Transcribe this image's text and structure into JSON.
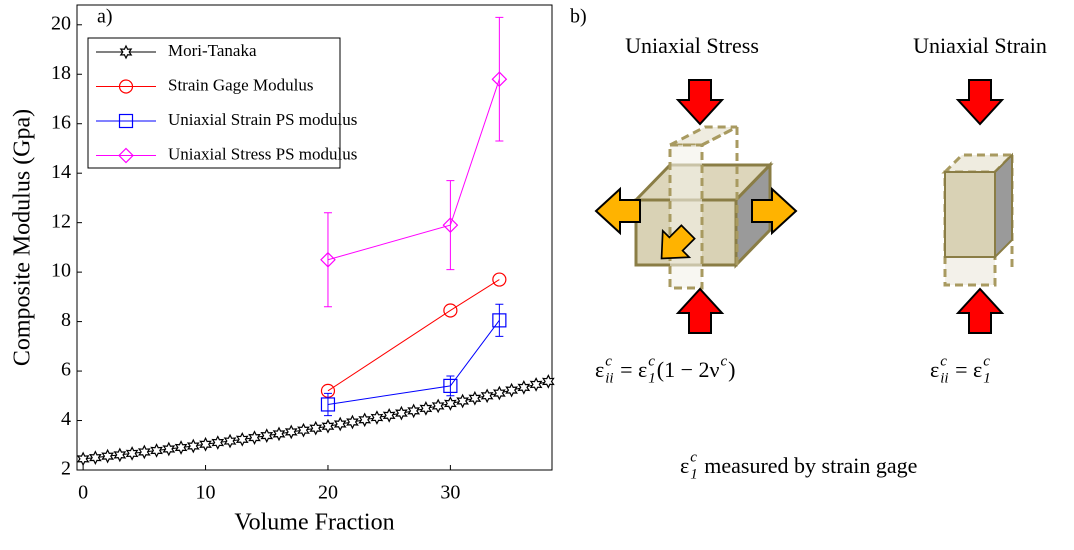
{
  "chart_data": {
    "type": "line",
    "panel_label": "a)",
    "x_label": "Volume Fraction",
    "y_label": "Composite Modulus (Gpa)",
    "xlim": [
      -0.5,
      38.3
    ],
    "ylim": [
      2,
      20.8
    ],
    "xticks": [
      0,
      10,
      20,
      30
    ],
    "yticks": [
      2,
      4,
      6,
      8,
      10,
      12,
      14,
      16,
      18,
      20
    ],
    "legend": "upper left",
    "series": [
      {
        "name": "Mori-Tanaka",
        "color": "#000000",
        "marker": "star",
        "x": [
          0,
          1,
          2,
          3,
          4,
          5,
          6,
          7,
          8,
          9,
          10,
          11,
          12,
          13,
          14,
          15,
          16,
          17,
          18,
          19,
          20,
          21,
          22,
          23,
          24,
          25,
          26,
          27,
          28,
          29,
          30,
          31,
          32,
          33,
          34,
          35,
          36,
          37,
          38
        ],
        "values": [
          2.45,
          2.5,
          2.56,
          2.61,
          2.67,
          2.73,
          2.79,
          2.85,
          2.91,
          2.97,
          3.04,
          3.11,
          3.17,
          3.24,
          3.31,
          3.39,
          3.46,
          3.54,
          3.61,
          3.69,
          3.77,
          3.86,
          3.94,
          4.03,
          4.12,
          4.21,
          4.3,
          4.39,
          4.49,
          4.59,
          4.69,
          4.79,
          4.9,
          5.0,
          5.11,
          5.23,
          5.34,
          5.46,
          5.58
        ]
      },
      {
        "name": "Strain Gage Modulus",
        "color": "#ff0000",
        "marker": "circle",
        "x": [
          20,
          30,
          34
        ],
        "values": [
          5.2,
          8.45,
          9.7
        ]
      },
      {
        "name": "Uniaxial Strain PS modulus",
        "color": "#0000ff",
        "marker": "square",
        "x": [
          20,
          30,
          34
        ],
        "values": [
          4.65,
          5.4,
          8.05
        ],
        "errors": [
          0.45,
          0.4,
          0.65
        ]
      },
      {
        "name": "Uniaxial Stress PS modulus",
        "color": "#ff00ff",
        "marker": "diamond",
        "x": [
          20,
          30,
          34
        ],
        "values": [
          10.5,
          11.9,
          17.8
        ],
        "errors": [
          1.9,
          1.8,
          2.5
        ]
      }
    ]
  },
  "diagram": {
    "panel_label": "b)",
    "stress_title": "Uniaxial Stress",
    "strain_title": "Uniaxial Strain",
    "stress_equation": [
      {
        "t": "ε",
        "pos": "base"
      },
      {
        "t": "c",
        "pos": "sup"
      },
      {
        "t": "ii",
        "pos": "sub"
      },
      {
        "t": " = ε",
        "pos": "base"
      },
      {
        "t": "c",
        "pos": "sup"
      },
      {
        "t": "1",
        "pos": "sub"
      },
      {
        "t": "(1 − 2ν",
        "pos": "base"
      },
      {
        "t": "c",
        "pos": "sup"
      },
      {
        "t": ")",
        "pos": "base"
      }
    ],
    "strain_equation": [
      {
        "t": "ε",
        "pos": "base"
      },
      {
        "t": "c",
        "pos": "sup"
      },
      {
        "t": "ii",
        "pos": "sub"
      },
      {
        "t": " = ε",
        "pos": "base"
      },
      {
        "t": "c",
        "pos": "sup"
      },
      {
        "t": "1",
        "pos": "sub"
      }
    ],
    "caption": [
      {
        "t": "ε",
        "pos": "base"
      },
      {
        "t": "c",
        "pos": "sup"
      },
      {
        "t": "1",
        "pos": "sub"
      },
      {
        "t": " measured by strain gage",
        "pos": "base"
      }
    ]
  }
}
